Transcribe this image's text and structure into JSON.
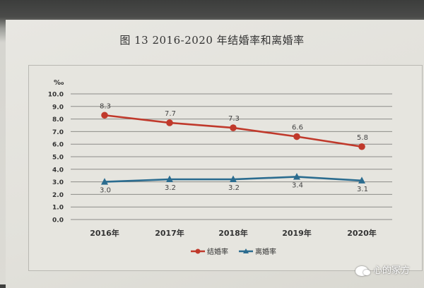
{
  "figure": {
    "title": "图 13     2016-2020 年结婚率和离婚率",
    "unit": "‰"
  },
  "watermark": {
    "text": "心的冢方",
    "icon": "wechat-icon"
  },
  "chart_data": {
    "type": "line",
    "title": "图 13 2016-2020 年结婚率和离婚率",
    "xlabel": "",
    "ylabel": "‰",
    "categories": [
      "2016年",
      "2017年",
      "2018年",
      "2019年",
      "2020年"
    ],
    "ylim": [
      0,
      10
    ],
    "yticks": [
      "0.0",
      "1.0",
      "2.0",
      "3.0",
      "4.0",
      "5.0",
      "6.0",
      "7.0",
      "8.0",
      "9.0",
      "10.0"
    ],
    "grid": true,
    "legend_position": "bottom",
    "series": [
      {
        "name": "结婚率",
        "values": [
          8.3,
          7.7,
          7.3,
          6.6,
          5.8
        ],
        "labels": [
          "8.3",
          "7.7",
          "7.3",
          "6.6",
          "5.8"
        ],
        "color": "#c0392b",
        "marker": "circle"
      },
      {
        "name": "离婚率",
        "values": [
          3.0,
          3.2,
          3.2,
          3.4,
          3.1
        ],
        "labels": [
          "3.0",
          "3.2",
          "3.2",
          "3.4",
          "3.1"
        ],
        "color": "#2b6c8f",
        "marker": "triangle"
      }
    ]
  }
}
